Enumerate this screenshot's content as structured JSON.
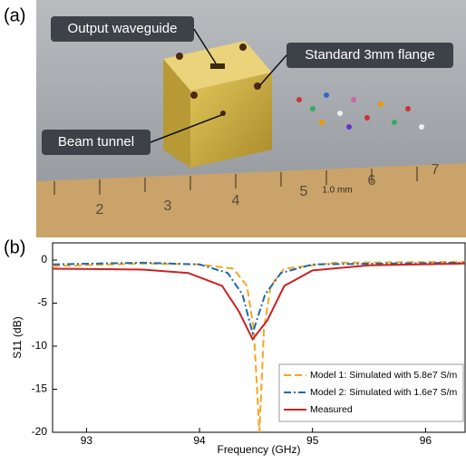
{
  "panel_labels": [
    "(a)",
    "(b)"
  ],
  "photo": {
    "callouts": [
      "Output waveguide",
      "Standard 3mm flange",
      "Beam tunnel"
    ],
    "ruler_labels": [
      "2",
      "3",
      "4",
      "5",
      "6",
      "7",
      "1.0 mm"
    ]
  },
  "chart_data": {
    "type": "line",
    "x_label": "Frequency (GHz)",
    "y_label": "S11 (dB)",
    "xlim": [
      92.7,
      96.35
    ],
    "xticks": [
      93,
      94,
      95,
      96
    ],
    "ylim": [
      -20,
      2
    ],
    "yticks": [
      0,
      -5,
      -10,
      -15,
      -20
    ],
    "legend": "lower right",
    "series": [
      {
        "name": "Model 1: Simulated with 5.8e7 S/m",
        "color": "#f5a623",
        "style": "dashed",
        "x": [
          92.7,
          93.5,
          94.0,
          94.3,
          94.42,
          94.48,
          94.53,
          94.57,
          94.63,
          94.75,
          95.2,
          96.35
        ],
        "values": [
          -0.7,
          -0.4,
          -0.5,
          -1,
          -3,
          -8,
          -20,
          -8,
          -3,
          -1,
          -0.3,
          -0.2
        ]
      },
      {
        "name": "Model 2: Simulated with 1.6e7 S/m",
        "color": "#1f6aa5",
        "style": "dashdot",
        "x": [
          92.7,
          93.5,
          94.0,
          94.25,
          94.38,
          94.47,
          94.58,
          94.72,
          95.0,
          96.35
        ],
        "values": [
          -0.5,
          -0.3,
          -0.5,
          -1.5,
          -4,
          -8.5,
          -4,
          -1.5,
          -0.5,
          -0.3
        ]
      },
      {
        "name": "Measured",
        "color": "#cc2222",
        "style": "solid",
        "x": [
          92.7,
          93.5,
          93.9,
          94.2,
          94.35,
          94.47,
          94.6,
          94.75,
          95.0,
          95.5,
          96.35
        ],
        "values": [
          -1,
          -1.1,
          -1.5,
          -3,
          -6,
          -9.2,
          -7,
          -3,
          -1.2,
          -0.6,
          -0.4
        ]
      }
    ]
  }
}
